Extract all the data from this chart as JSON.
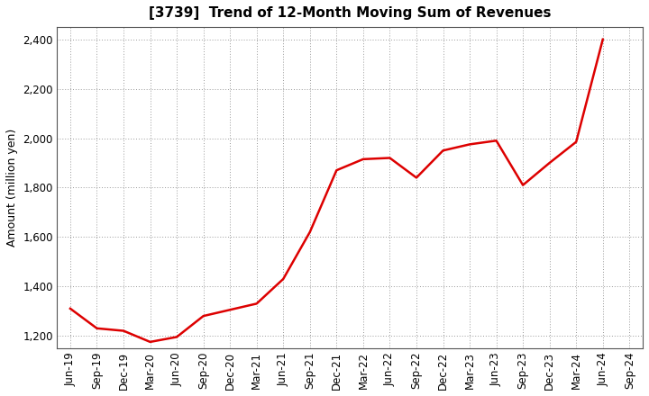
{
  "title": "[3739]  Trend of 12-Month Moving Sum of Revenues",
  "ylabel": "Amount (million yen)",
  "line_color": "#dd0000",
  "background_color": "#ffffff",
  "plot_bg_color": "#ffffff",
  "grid_color": "#999999",
  "ylim": [
    1150,
    2450
  ],
  "yticks": [
    1200,
    1400,
    1600,
    1800,
    2000,
    2200,
    2400
  ],
  "x_labels": [
    "Jun-19",
    "Sep-19",
    "Dec-19",
    "Mar-20",
    "Jun-20",
    "Sep-20",
    "Dec-20",
    "Mar-21",
    "Jun-21",
    "Sep-21",
    "Dec-21",
    "Mar-22",
    "Jun-22",
    "Sep-22",
    "Dec-22",
    "Mar-23",
    "Jun-23",
    "Sep-23",
    "Dec-23",
    "Mar-24",
    "Jun-24",
    "Sep-24"
  ],
  "values": [
    1310,
    1230,
    1220,
    1175,
    1195,
    1280,
    1305,
    1330,
    1430,
    1620,
    1870,
    1915,
    1920,
    1840,
    1950,
    1975,
    1990,
    1810,
    1900,
    1985,
    2400,
    null
  ]
}
